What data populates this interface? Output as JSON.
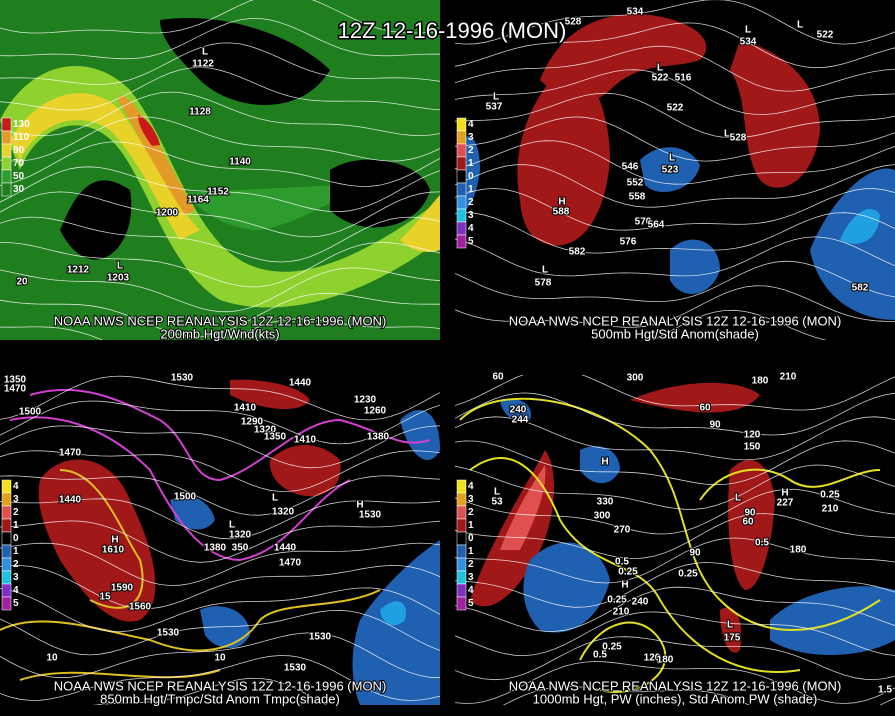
{
  "title": "12Z 12-16-1996 (MON)",
  "panels": [
    {
      "source": "NOAA NWS NCEP REANALYSIS 12Z 12-16-1996 (MON)",
      "caption": "200mb Hgt/Wnd(kts)",
      "legend": [
        "130",
        "110",
        "90",
        "70",
        "50",
        "30"
      ],
      "labels": [
        "L",
        "1122",
        "1128",
        "1140",
        "1152",
        "1164",
        "1200",
        "1212",
        "L",
        "1203",
        "20"
      ]
    },
    {
      "source": "NOAA NWS NCEP REANALYSIS 12Z 12-16-1996 (MON)",
      "caption": "500mb Hgt/Std Anom(shade)",
      "legend": [
        "4",
        "3",
        "2",
        "1",
        "0",
        "1",
        "2",
        "3",
        "4",
        "5"
      ],
      "labels": [
        "534",
        "528",
        "L",
        "534",
        "L",
        "522",
        "L",
        "522",
        "516",
        "522",
        "L",
        "528",
        "L",
        "537",
        "L",
        "523",
        "546",
        "552",
        "558",
        "570",
        "564",
        "576",
        "H",
        "588",
        "582",
        "L",
        "578",
        "582"
      ]
    },
    {
      "source": "NOAA NWS NCEP REANALYSIS 12Z 12-16-1996 (MON)",
      "caption": "850mb Hgt/Tmpc/Std Anom Tmpc(shade)",
      "legend": [
        "4",
        "3",
        "2",
        "1",
        "0",
        "1",
        "2",
        "3",
        "4",
        "5"
      ],
      "labels": [
        "1350",
        "1470",
        "1530",
        "1500",
        "1470",
        "1440",
        "H",
        "1610",
        "1590",
        "1560",
        "1530",
        "1500",
        "1410",
        "1290",
        "1320",
        "1350",
        "1410",
        "L",
        "1320",
        "L",
        "1320",
        "1380",
        "350",
        "1440",
        "1470",
        "H",
        "1530",
        "1380",
        "1230",
        "1260",
        "1440",
        "1530",
        "1530",
        "15",
        "10",
        "10"
      ]
    },
    {
      "source": "NOAA NWS NCEP REANALYSIS 12Z 12-16-1996 (MON)",
      "caption": "1000mb Hgt, PW (inches), Std Anom PW (shade)",
      "legend": [
        "4",
        "3",
        "2",
        "1",
        "0",
        "1",
        "2",
        "3",
        "4",
        "5"
      ],
      "labels": [
        "60",
        "300",
        "180",
        "210",
        "240",
        "244",
        "60",
        "90",
        "120",
        "150",
        "H",
        "L",
        "53",
        "330",
        "300",
        "270",
        "L",
        "90",
        "60",
        "H",
        "227",
        "0.25",
        "210",
        "180",
        "90",
        "0.5",
        "0.25",
        "0.25",
        "H",
        "0.25",
        "210",
        "240",
        "0.5",
        "0.25",
        "120",
        "180",
        "L",
        "175",
        "1.5",
        "0.5"
      ]
    }
  ]
}
